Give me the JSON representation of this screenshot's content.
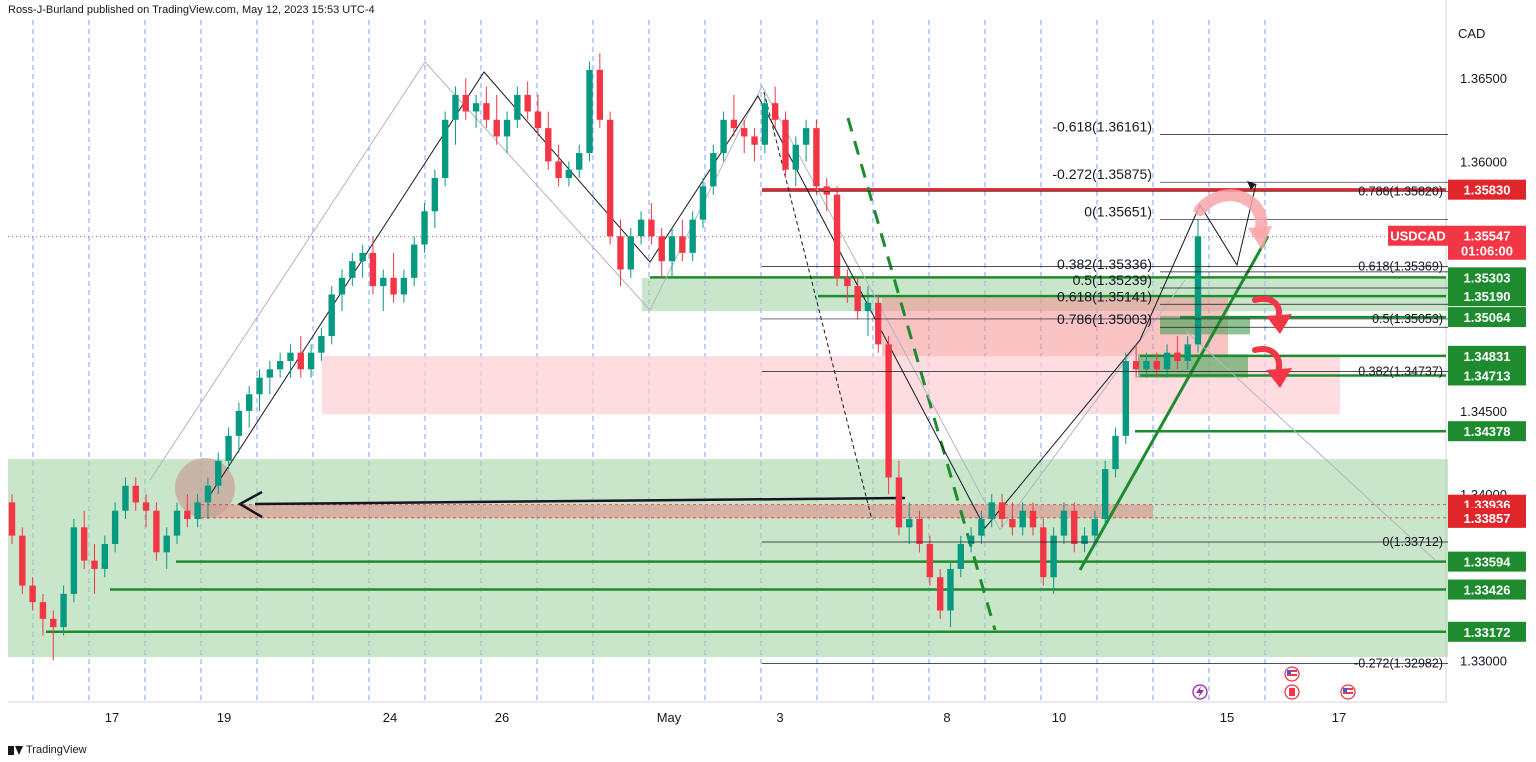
{
  "header": {
    "publisher_line": "Ross-J-Burland published on TradingView.com, May 12, 2023 15:53 UTC-4"
  },
  "footer": {
    "brand": "TradingView"
  },
  "chart_data": {
    "type": "candlestick",
    "symbol": "USDCAD",
    "currency_label": "CAD",
    "ylim": [
      1.3275,
      1.3685
    ],
    "grid": "vertical dashed",
    "x_ticks": [
      "17",
      "19",
      "24",
      "26",
      "May",
      "3",
      "8",
      "10",
      "15",
      "17"
    ],
    "y_ticks": [
      "1.36500",
      "1.36000",
      "1.34500",
      "1.34000",
      "1.33000"
    ],
    "current_price": {
      "symbol": "USDCAD",
      "price": "1.35547",
      "countdown": "01:06:00"
    },
    "price_tags": [
      {
        "value": 1.3583,
        "label": "1.35830",
        "color": "#e0262b"
      },
      {
        "value": 1.35303,
        "label": "1.35303",
        "color": "#1e8c2e"
      },
      {
        "value": 1.3519,
        "label": "1.35190",
        "color": "#1e8c2e"
      },
      {
        "value": 1.35064,
        "label": "1.35064",
        "color": "#1e8c2e"
      },
      {
        "value": 1.34831,
        "label": "1.34831",
        "color": "#1e8c2e"
      },
      {
        "value": 1.34713,
        "label": "1.34713",
        "color": "#1e8c2e"
      },
      {
        "value": 1.34378,
        "label": "1.34378",
        "color": "#1e8c2e"
      },
      {
        "value": 1.33936,
        "label": "1.33936",
        "color": "#e0262b"
      },
      {
        "value": 1.33857,
        "label": "1.33857",
        "color": "#e0262b"
      },
      {
        "value": 1.33594,
        "label": "1.33594",
        "color": "#1e8c2e"
      },
      {
        "value": 1.33426,
        "label": "1.33426",
        "color": "#1e8c2e"
      },
      {
        "value": 1.33172,
        "label": "1.33172",
        "color": "#1e8c2e"
      }
    ],
    "fib_levels_left": [
      {
        "ratio": "-0.618",
        "value": 1.36161,
        "label": "-0.618(1.36161)"
      },
      {
        "ratio": "-0.272",
        "value": 1.35875,
        "label": "-0.272(1.35875)"
      },
      {
        "ratio": "0",
        "value": 1.35651,
        "label": "0(1.35651)"
      },
      {
        "ratio": "0.382",
        "value": 1.35336,
        "label": "0.382(1.35336)"
      },
      {
        "ratio": "0.5",
        "value": 1.35239,
        "label": "0.5(1.35239)"
      },
      {
        "ratio": "0.618",
        "value": 1.35141,
        "label": "0.618(1.35141)"
      },
      {
        "ratio": "0.786",
        "value": 1.35003,
        "label": "0.786(1.35003)"
      }
    ],
    "fib_levels_right": [
      {
        "ratio": "0.786",
        "value": 1.3582,
        "label": "0.786(1.35820)"
      },
      {
        "ratio": "0.618",
        "value": 1.35369,
        "label": "0.618(1.35369)"
      },
      {
        "ratio": "0.5",
        "value": 1.35053,
        "label": "0.5(1.35053)"
      },
      {
        "ratio": "0.382",
        "value": 1.34737,
        "label": "0.382(1.34737)"
      },
      {
        "ratio": "0",
        "value": 1.33712,
        "label": "0(1.33712)"
      },
      {
        "ratio": "-0.272",
        "value": 1.32982,
        "label": "-0.272(1.32982)"
      }
    ],
    "candles": [
      [
        1.3395,
        1.34,
        1.337,
        1.3375
      ],
      [
        1.3375,
        1.338,
        1.334,
        1.3345
      ],
      [
        1.3345,
        1.335,
        1.333,
        1.3335
      ],
      [
        1.3335,
        1.334,
        1.3315,
        1.3325
      ],
      [
        1.3325,
        1.333,
        1.33,
        1.332
      ],
      [
        1.332,
        1.3345,
        1.3315,
        1.334
      ],
      [
        1.334,
        1.3385,
        1.3335,
        1.338
      ],
      [
        1.338,
        1.339,
        1.3355,
        1.336
      ],
      [
        1.336,
        1.337,
        1.334,
        1.3355
      ],
      [
        1.3355,
        1.3375,
        1.335,
        1.337
      ],
      [
        1.337,
        1.3395,
        1.3365,
        1.339
      ],
      [
        1.339,
        1.341,
        1.3385,
        1.3405
      ],
      [
        1.3405,
        1.341,
        1.339,
        1.3395
      ],
      [
        1.3395,
        1.34,
        1.338,
        1.339
      ],
      [
        1.339,
        1.3395,
        1.336,
        1.3365
      ],
      [
        1.3365,
        1.338,
        1.3355,
        1.3375
      ],
      [
        1.3375,
        1.3395,
        1.337,
        1.339
      ],
      [
        1.339,
        1.34,
        1.338,
        1.3385
      ],
      [
        1.3385,
        1.34,
        1.338,
        1.3395
      ],
      [
        1.3395,
        1.341,
        1.3385,
        1.3405
      ],
      [
        1.3405,
        1.3425,
        1.34,
        1.342
      ],
      [
        1.342,
        1.344,
        1.3415,
        1.3435
      ],
      [
        1.3435,
        1.3455,
        1.3425,
        1.345
      ],
      [
        1.345,
        1.3465,
        1.344,
        1.346
      ],
      [
        1.346,
        1.3475,
        1.345,
        1.347
      ],
      [
        1.347,
        1.348,
        1.346,
        1.3475
      ],
      [
        1.3475,
        1.3485,
        1.347,
        1.348
      ],
      [
        1.348,
        1.349,
        1.347,
        1.3485
      ],
      [
        1.3485,
        1.3495,
        1.347,
        1.3475
      ],
      [
        1.3475,
        1.349,
        1.347,
        1.3485
      ],
      [
        1.3485,
        1.35,
        1.348,
        1.3495
      ],
      [
        1.3495,
        1.3525,
        1.349,
        1.352
      ],
      [
        1.352,
        1.3535,
        1.351,
        1.353
      ],
      [
        1.353,
        1.3545,
        1.3525,
        1.354
      ],
      [
        1.354,
        1.355,
        1.353,
        1.3545
      ],
      [
        1.3545,
        1.3555,
        1.352,
        1.3525
      ],
      [
        1.3525,
        1.3535,
        1.351,
        1.353
      ],
      [
        1.353,
        1.3545,
        1.3515,
        1.352
      ],
      [
        1.352,
        1.3535,
        1.3515,
        1.353
      ],
      [
        1.353,
        1.3555,
        1.3525,
        1.355
      ],
      [
        1.355,
        1.3575,
        1.3545,
        1.357
      ],
      [
        1.357,
        1.3595,
        1.356,
        1.359
      ],
      [
        1.359,
        1.363,
        1.3585,
        1.3625
      ],
      [
        1.3625,
        1.3645,
        1.361,
        1.364
      ],
      [
        1.364,
        1.365,
        1.3625,
        1.363
      ],
      [
        1.363,
        1.364,
        1.362,
        1.3635
      ],
      [
        1.3635,
        1.3645,
        1.362,
        1.3625
      ],
      [
        1.3625,
        1.364,
        1.361,
        1.3615
      ],
      [
        1.3615,
        1.363,
        1.3605,
        1.3625
      ],
      [
        1.3625,
        1.3645,
        1.362,
        1.364
      ],
      [
        1.364,
        1.3648,
        1.3625,
        1.363
      ],
      [
        1.363,
        1.364,
        1.3615,
        1.362
      ],
      [
        1.362,
        1.363,
        1.3595,
        1.36
      ],
      [
        1.36,
        1.361,
        1.3585,
        1.359
      ],
      [
        1.359,
        1.36,
        1.3585,
        1.3595
      ],
      [
        1.3595,
        1.361,
        1.359,
        1.3605
      ],
      [
        1.3605,
        1.366,
        1.36,
        1.3655
      ],
      [
        1.3655,
        1.3665,
        1.362,
        1.3625
      ],
      [
        1.3625,
        1.363,
        1.355,
        1.3555
      ],
      [
        1.3555,
        1.3565,
        1.3525,
        1.3535
      ],
      [
        1.3535,
        1.356,
        1.353,
        1.3555
      ],
      [
        1.3555,
        1.357,
        1.355,
        1.3565
      ],
      [
        1.3565,
        1.3575,
        1.355,
        1.3555
      ],
      [
        1.3555,
        1.356,
        1.353,
        1.354
      ],
      [
        1.354,
        1.356,
        1.353,
        1.3555
      ],
      [
        1.3555,
        1.3565,
        1.354,
        1.3545
      ],
      [
        1.3545,
        1.357,
        1.354,
        1.3565
      ],
      [
        1.3565,
        1.359,
        1.356,
        1.3585
      ],
      [
        1.3585,
        1.361,
        1.358,
        1.3605
      ],
      [
        1.3605,
        1.363,
        1.36,
        1.3625
      ],
      [
        1.3625,
        1.364,
        1.3615,
        1.362
      ],
      [
        1.362,
        1.3625,
        1.3605,
        1.3615
      ],
      [
        1.3615,
        1.362,
        1.36,
        1.361
      ],
      [
        1.361,
        1.364,
        1.3605,
        1.3635
      ],
      [
        1.3635,
        1.3645,
        1.362,
        1.3625
      ],
      [
        1.3625,
        1.363,
        1.359,
        1.3595
      ],
      [
        1.3595,
        1.3615,
        1.3585,
        1.361
      ],
      [
        1.361,
        1.3625,
        1.36,
        1.362
      ],
      [
        1.362,
        1.3625,
        1.358,
        1.3585
      ],
      [
        1.3585,
        1.359,
        1.357,
        1.358
      ],
      [
        1.358,
        1.3585,
        1.3525,
        1.353
      ],
      [
        1.353,
        1.3535,
        1.3515,
        1.3525
      ],
      [
        1.3525,
        1.353,
        1.3505,
        1.351
      ],
      [
        1.351,
        1.3525,
        1.3495,
        1.3515
      ],
      [
        1.3515,
        1.352,
        1.3485,
        1.349
      ],
      [
        1.349,
        1.3495,
        1.34,
        1.341
      ],
      [
        1.341,
        1.342,
        1.3375,
        1.338
      ],
      [
        1.338,
        1.3395,
        1.337,
        1.3385
      ],
      [
        1.3385,
        1.339,
        1.3365,
        1.337
      ],
      [
        1.337,
        1.3375,
        1.3345,
        1.335
      ],
      [
        1.335,
        1.3355,
        1.3325,
        1.333
      ],
      [
        1.333,
        1.336,
        1.332,
        1.3355
      ],
      [
        1.3355,
        1.3375,
        1.335,
        1.337
      ],
      [
        1.337,
        1.338,
        1.3365,
        1.3375
      ],
      [
        1.3375,
        1.339,
        1.337,
        1.3385
      ],
      [
        1.3385,
        1.34,
        1.338,
        1.3395
      ],
      [
        1.3395,
        1.34,
        1.338,
        1.3385
      ],
      [
        1.3385,
        1.3395,
        1.3375,
        1.338
      ],
      [
        1.338,
        1.3395,
        1.3375,
        1.339
      ],
      [
        1.339,
        1.3395,
        1.3375,
        1.338
      ],
      [
        1.338,
        1.3385,
        1.3345,
        1.335
      ],
      [
        1.335,
        1.338,
        1.334,
        1.3375
      ],
      [
        1.3375,
        1.3395,
        1.337,
        1.339
      ],
      [
        1.339,
        1.3395,
        1.3365,
        1.337
      ],
      [
        1.337,
        1.338,
        1.3365,
        1.3375
      ],
      [
        1.3375,
        1.339,
        1.337,
        1.3385
      ],
      [
        1.3385,
        1.342,
        1.338,
        1.3415
      ],
      [
        1.3415,
        1.344,
        1.341,
        1.3435
      ],
      [
        1.3435,
        1.3485,
        1.343,
        1.348
      ],
      [
        1.348,
        1.349,
        1.347,
        1.3475
      ],
      [
        1.3475,
        1.3485,
        1.347,
        1.348
      ],
      [
        1.348,
        1.3485,
        1.347,
        1.3475
      ],
      [
        1.3475,
        1.349,
        1.347,
        1.3485
      ],
      [
        1.3485,
        1.3495,
        1.3475,
        1.348
      ],
      [
        1.348,
        1.3495,
        1.3475,
        1.349
      ],
      [
        1.349,
        1.3565,
        1.3485,
        1.3555
      ]
    ]
  }
}
